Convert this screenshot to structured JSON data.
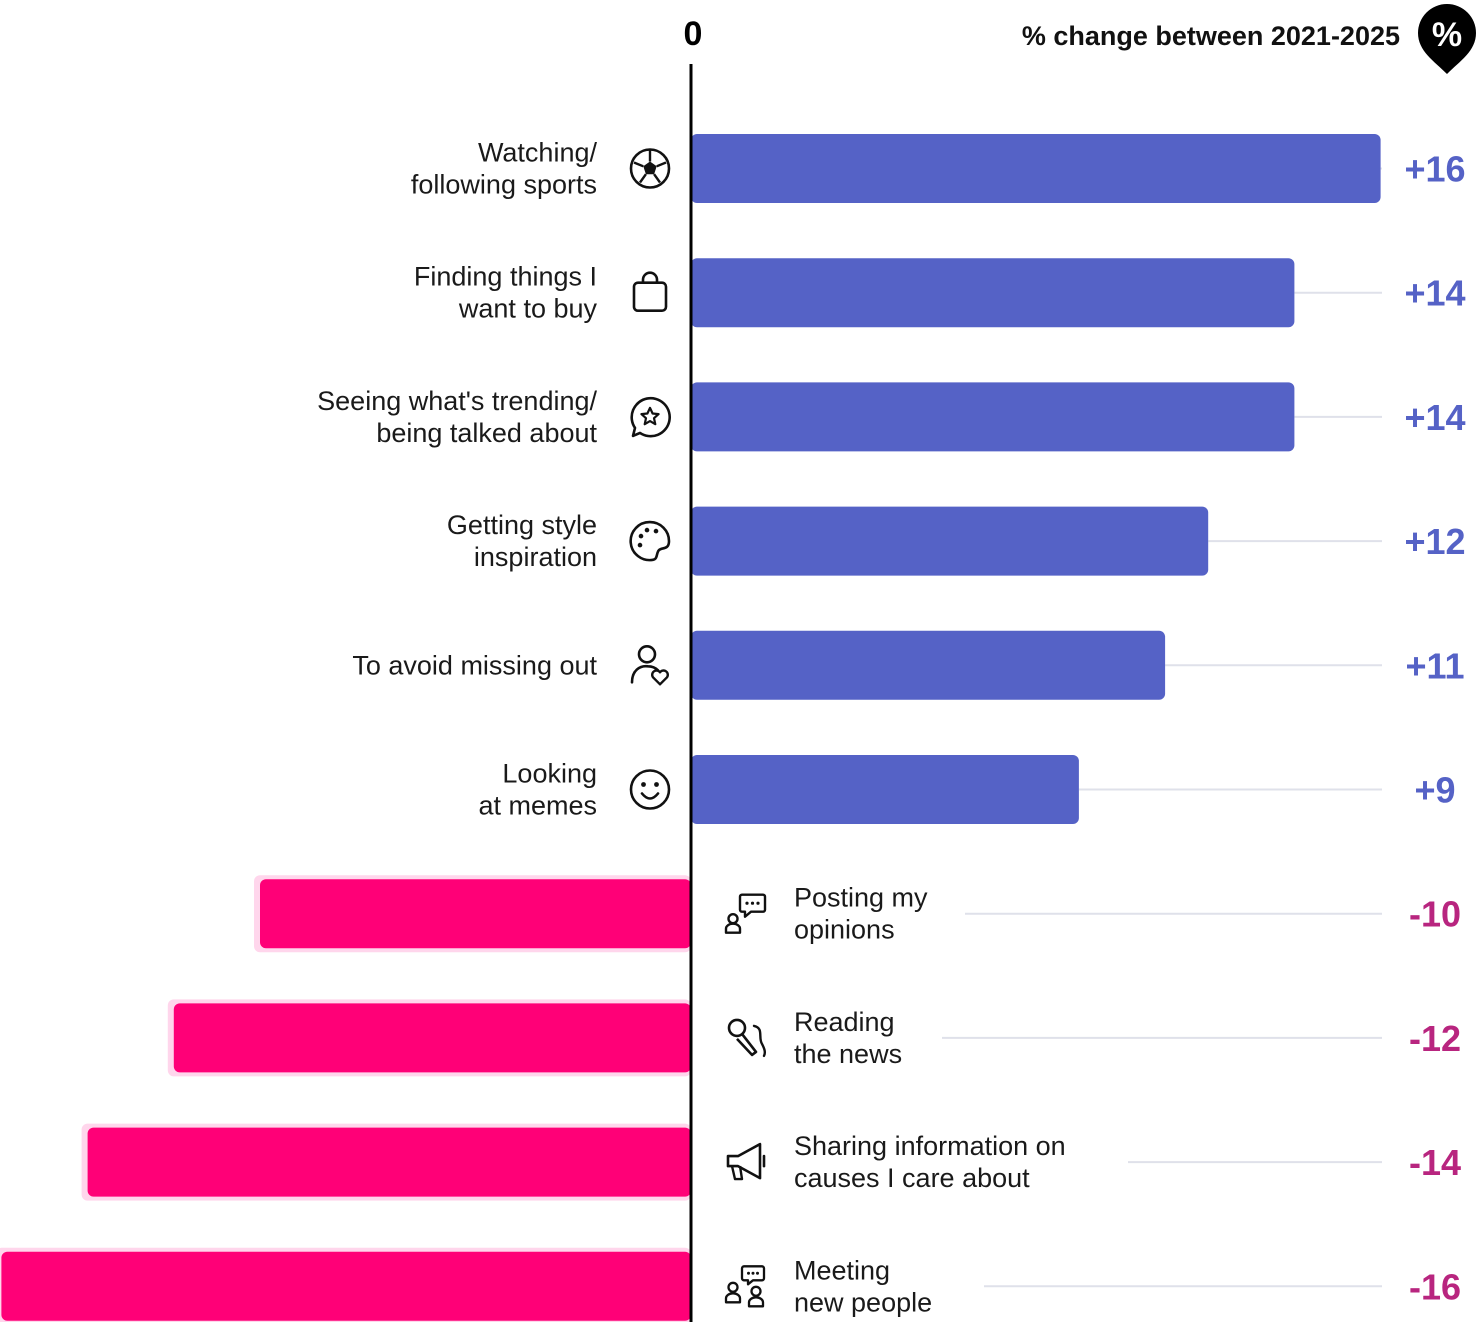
{
  "chart_data": {
    "type": "bar",
    "orientation": "horizontal-diverging",
    "header": "% change between 2021-2025",
    "badge": "%",
    "zero_label": "0",
    "xlim": [
      -16,
      16
    ],
    "colors": {
      "positive": "#5562c6",
      "negative": "#ff0077",
      "positive_text": "#5562c6",
      "negative_text": "#b8257f",
      "guide": "#dfe1ea",
      "axis": "#000000"
    },
    "categories": [
      {
        "label": [
          "Watching/",
          "following sports"
        ],
        "value": 16,
        "display": "+16",
        "icon": "soccer-ball-icon"
      },
      {
        "label": [
          "Finding things I",
          "want to buy"
        ],
        "value": 14,
        "display": "+14",
        "icon": "shopping-bag-icon"
      },
      {
        "label": [
          "Seeing what's trending/",
          "being talked about"
        ],
        "value": 14,
        "display": "+14",
        "icon": "star-chat-icon"
      },
      {
        "label": [
          "Getting style",
          "inspiration"
        ],
        "value": 12,
        "display": "+12",
        "icon": "palette-icon"
      },
      {
        "label": [
          "To avoid missing out"
        ],
        "value": 11,
        "display": "+11",
        "icon": "person-heart-icon"
      },
      {
        "label": [
          "Looking",
          "at memes"
        ],
        "value": 9,
        "display": "+9",
        "icon": "smiley-icon"
      },
      {
        "label": [
          "Posting my",
          "opinions"
        ],
        "value": -10,
        "display": "-10",
        "icon": "person-speech-icon"
      },
      {
        "label": [
          "Reading",
          "the news"
        ],
        "value": -12,
        "display": "-12",
        "icon": "microphone-icon"
      },
      {
        "label": [
          "Sharing information on",
          "causes I care about"
        ],
        "value": -14,
        "display": "-14",
        "icon": "megaphone-icon"
      },
      {
        "label": [
          "Meeting",
          "new people"
        ],
        "value": -16,
        "display": "-16",
        "icon": "people-chat-icon"
      }
    ]
  }
}
